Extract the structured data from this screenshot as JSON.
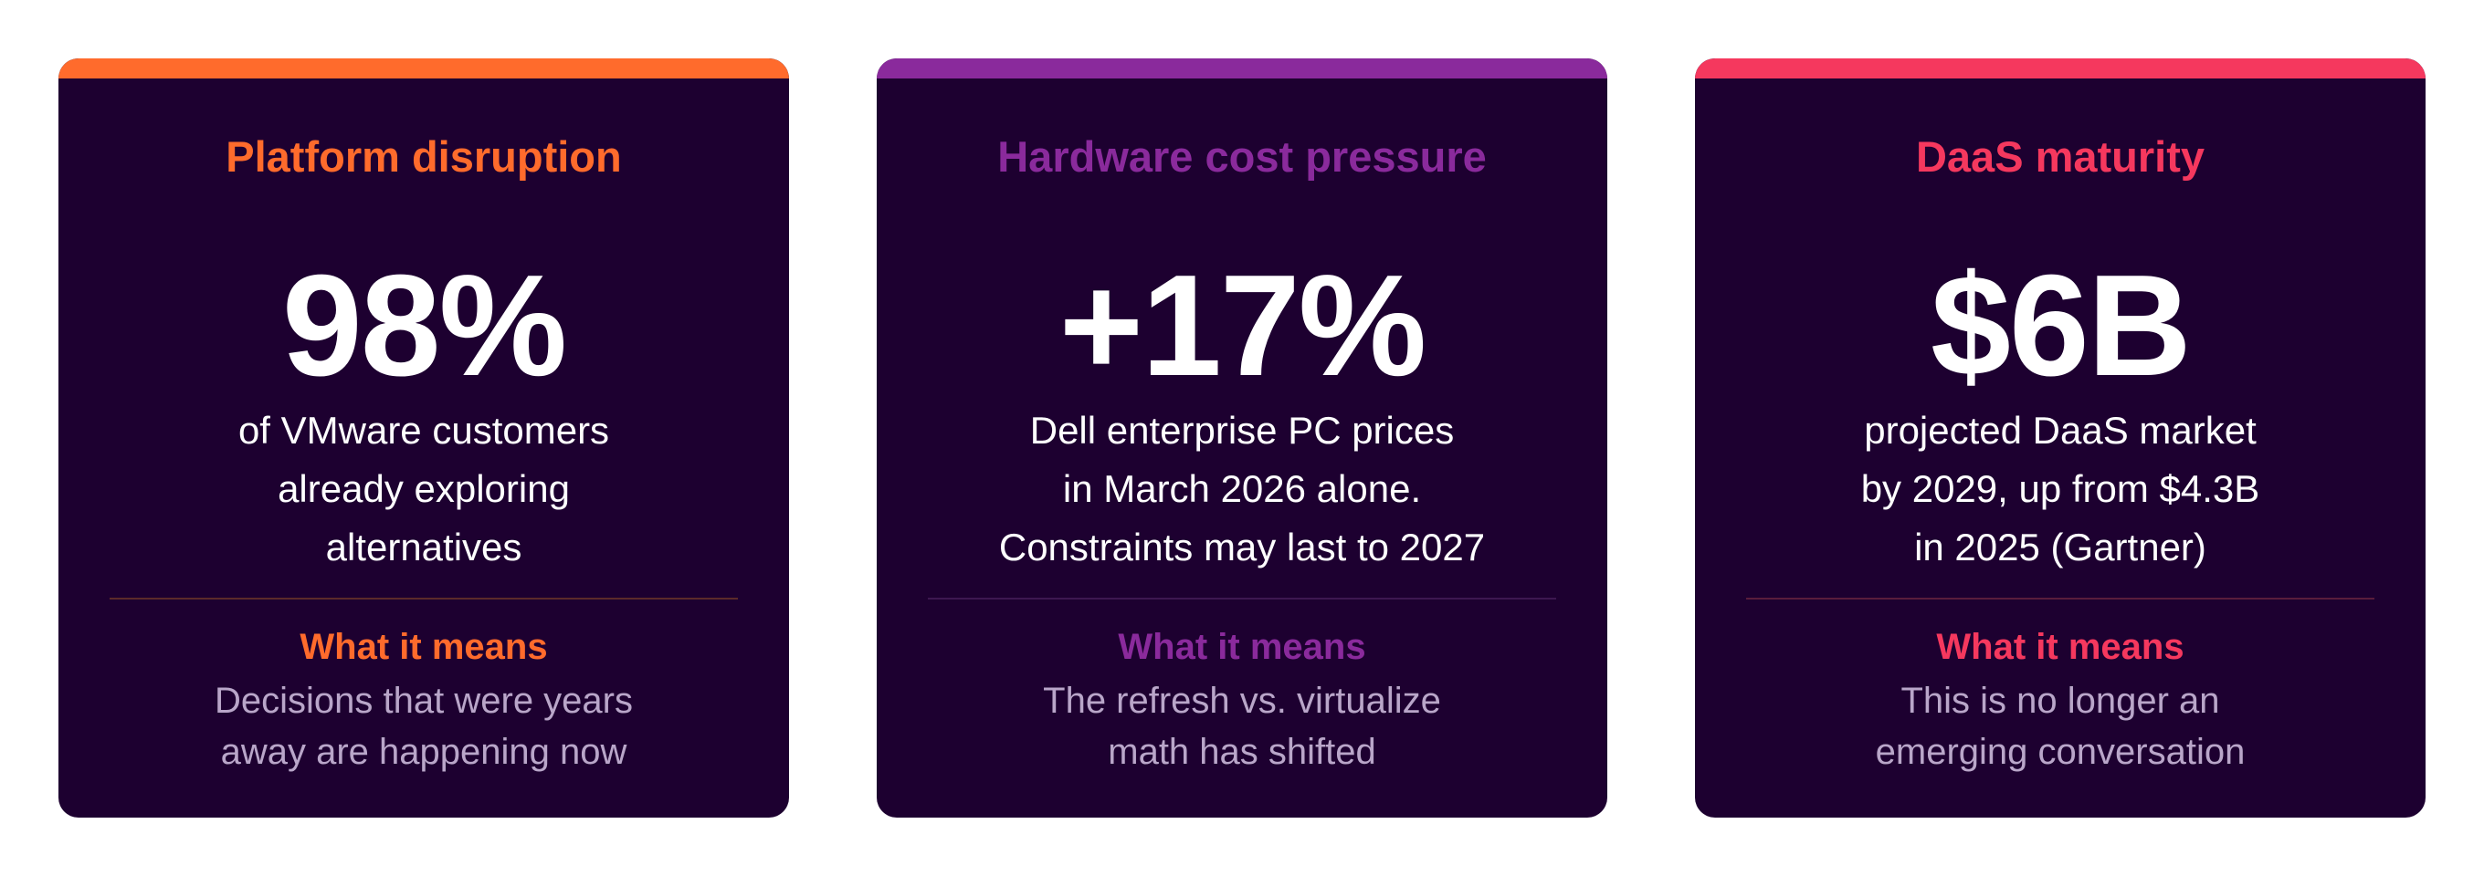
{
  "cards": [
    {
      "title": "Platform disruption",
      "stat": "98%",
      "description": [
        "of VMware customers",
        "already exploring",
        "alternatives"
      ],
      "means_label": "What it means",
      "implication": [
        "Decisions that were years",
        "away are happening now"
      ],
      "accent_color": "#ff6b2c",
      "divider_color": "#5c2a2a"
    },
    {
      "title": "Hardware cost pressure",
      "stat": "+17%",
      "description": [
        "Dell enterprise PC prices",
        "in March 2026 alone.",
        "Constraints may last to 2027"
      ],
      "means_label": "What it means",
      "implication": [
        "The refresh vs. virtualize",
        "math has shifted"
      ],
      "accent_color": "#8a2a9c",
      "divider_color": "#3d1750"
    },
    {
      "title": "DaaS maturity",
      "stat": "$6B",
      "description": [
        "projected DaaS market",
        "by 2029, up from $4.3B",
        "in 2025 (Gartner)"
      ],
      "means_label": "What it means",
      "implication": [
        "This is no longer an",
        "emerging conversation"
      ],
      "accent_color": "#f5385e",
      "divider_color": "#5a1d3c"
    }
  ],
  "colors": {
    "card_background": "#1d0030",
    "stat_text": "#ffffff",
    "implication_text": "#b9a6c9",
    "page_background": "#ffffff"
  }
}
